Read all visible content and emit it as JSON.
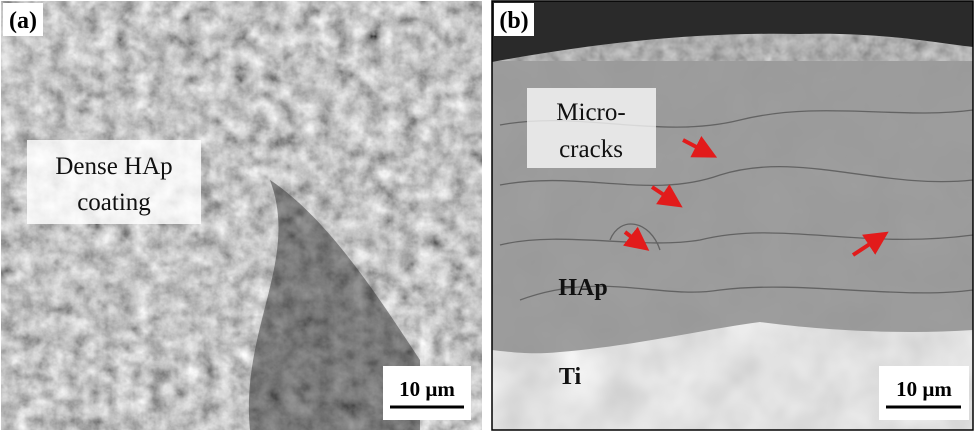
{
  "panels": [
    {
      "label": "(a)",
      "annotation_lines": [
        "Dense HAp",
        "coating"
      ],
      "scale_bar": "10 µm"
    },
    {
      "label": "(b)",
      "annotation_lines": [
        "Micro-",
        "cracks"
      ],
      "region_labels": [
        "HAp",
        "Ti"
      ],
      "scale_bar": "10 µm"
    }
  ]
}
